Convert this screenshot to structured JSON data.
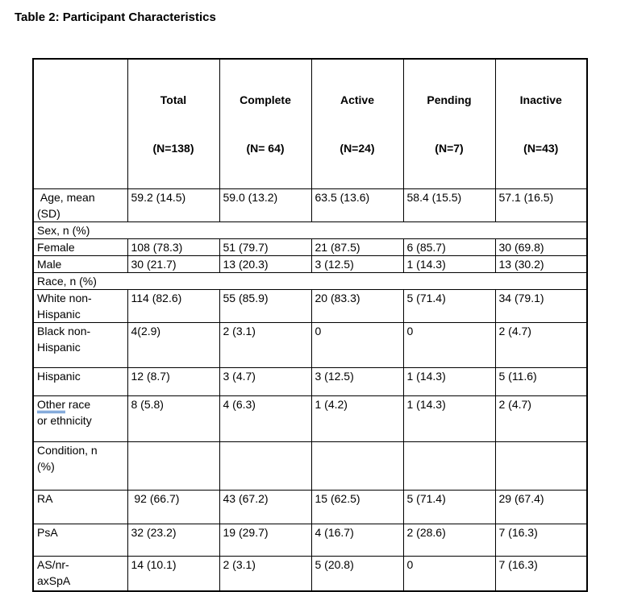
{
  "title": "Table 2: Participant Characteristics",
  "colors": {
    "text": "#000000",
    "border": "#000000",
    "background": "#ffffff",
    "grammar_underline": "#2a6dc0"
  },
  "table": {
    "headers": [
      {
        "line1": "",
        "line2": ""
      },
      {
        "line1": "Total",
        "line2": "(N=138)"
      },
      {
        "line1": "Complete",
        "line2": "(N= 64)"
      },
      {
        "line1": "Active",
        "line2": "(N=24)"
      },
      {
        "line1": "Pending",
        "line2": "(N=7)"
      },
      {
        "line1": "Inactive",
        "line2": "(N=43)"
      }
    ],
    "rows": [
      {
        "type": "data",
        "label": " Age, mean\n(SD)",
        "values": [
          "59.2 (14.5)",
          "59.0 (13.2)",
          "63.5 (13.6)",
          "58.4 (15.5)",
          "57.1 (16.5)"
        ]
      },
      {
        "type": "section",
        "label": "Sex, n (%)"
      },
      {
        "type": "data",
        "label": "Female",
        "values": [
          "108 (78.3)",
          "51 (79.7)",
          "21 (87.5)",
          "6 (85.7)",
          "30 (69.8)"
        ]
      },
      {
        "type": "data",
        "label": "Male",
        "values": [
          "30 (21.7)",
          "13 (20.3)",
          "3 (12.5)",
          "1 (14.3)",
          "13 (30.2)"
        ]
      },
      {
        "type": "section",
        "label": "Race, n (%)"
      },
      {
        "type": "data",
        "label": "White non-\nHispanic",
        "values": [
          "114 (82.6)",
          "55 (85.9)",
          "20 (83.3)",
          "5 (71.4)",
          "34 (79.1)"
        ]
      },
      {
        "type": "data",
        "label": "Black non-\nHispanic",
        "values": [
          "4(2.9)",
          "2 (3.1)",
          "0",
          "0",
          "2 (4.7)"
        ]
      },
      {
        "type": "data",
        "label": "Hispanic",
        "values": [
          "12 (8.7)",
          "3 (4.7)",
          "3 (12.5)",
          "1 (14.3)",
          "5 (11.6)"
        ]
      },
      {
        "type": "data",
        "label_parts": [
          {
            "text": "Other",
            "underline": true
          },
          {
            "text": " race\nor ethnicity",
            "underline": false
          }
        ],
        "values": [
          "8 (5.8)",
          "4 (6.3)",
          "1 (4.2)",
          "1 (14.3)",
          "2 (4.7)"
        ]
      },
      {
        "type": "data",
        "label": "Condition, n\n(%)",
        "values": [
          "",
          "",
          "",
          "",
          ""
        ]
      },
      {
        "type": "data",
        "label": "RA",
        "values": [
          " 92 (66.7)",
          "43 (67.2)",
          "15 (62.5)",
          "5 (71.4)",
          "29 (67.4)"
        ]
      },
      {
        "type": "data",
        "label": "PsA",
        "values": [
          "32 (23.2)",
          "19 (29.7)",
          "4 (16.7)",
          "2 (28.6)",
          "7 (16.3)"
        ]
      },
      {
        "type": "data",
        "label": "AS/nr-\naxSpA",
        "values": [
          "14 (10.1)",
          "2 (3.1)",
          "5 (20.8)",
          "0",
          "7 (16.3)"
        ]
      }
    ]
  }
}
